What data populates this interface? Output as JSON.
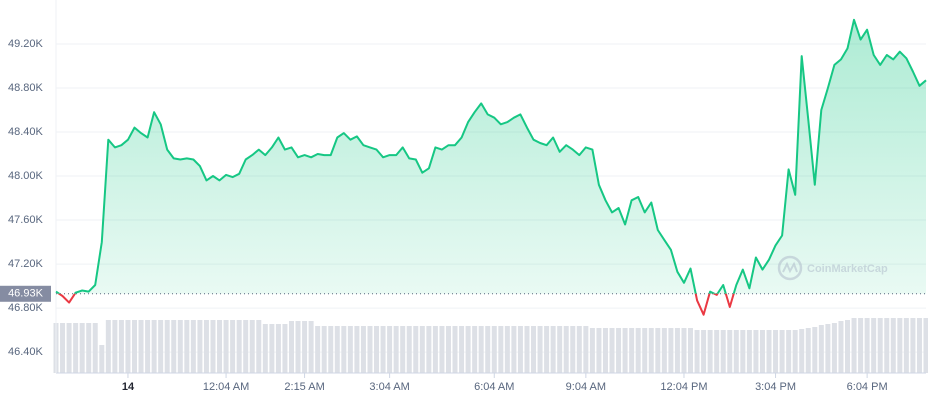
{
  "chart_data": {
    "type": "area",
    "values": [
      46950,
      46910,
      46850,
      46940,
      46960,
      46950,
      47010,
      47400,
      48330,
      48260,
      48280,
      48330,
      48440,
      48390,
      48350,
      48580,
      48470,
      48240,
      48160,
      48150,
      48160,
      48150,
      48090,
      47960,
      48000,
      47960,
      48010,
      47990,
      48020,
      48150,
      48190,
      48240,
      48190,
      48260,
      48350,
      48240,
      48260,
      48170,
      48190,
      48170,
      48200,
      48190,
      48190,
      48350,
      48390,
      48330,
      48360,
      48280,
      48260,
      48240,
      48170,
      48190,
      48190,
      48260,
      48160,
      48150,
      48030,
      48070,
      48260,
      48240,
      48280,
      48280,
      48350,
      48490,
      48580,
      48660,
      48560,
      48530,
      48470,
      48490,
      48530,
      48560,
      48440,
      48330,
      48300,
      48280,
      48350,
      48220,
      48280,
      48240,
      48190,
      48260,
      48240,
      47920,
      47780,
      47670,
      47710,
      47560,
      47780,
      47810,
      47670,
      47760,
      47510,
      47420,
      47330,
      47130,
      47030,
      47160,
      46870,
      46740,
      46950,
      46920,
      47010,
      46810,
      47010,
      47150,
      46980,
      47260,
      47150,
      47240,
      47370,
      47460,
      48060,
      47830,
      49090,
      48510,
      47920,
      48600,
      48800,
      49010,
      49060,
      49160,
      49420,
      49240,
      49330,
      49100,
      49010,
      49100,
      49060,
      49130,
      49070,
      48950,
      48820,
      48870
    ],
    "color": "#16c784",
    "color_below": "#ea3943",
    "reference": {
      "value": 46930,
      "label": "46.93K"
    },
    "volume": [
      50,
      50,
      50,
      50,
      50,
      50,
      50,
      28,
      53,
      53,
      53,
      53,
      53,
      53,
      53,
      53,
      53,
      53,
      53,
      53,
      53,
      53,
      53,
      53,
      53,
      53,
      53,
      53,
      53,
      53,
      53,
      53,
      49,
      49,
      49,
      49,
      52,
      52,
      52,
      52,
      47,
      47,
      47,
      47,
      47,
      47,
      47,
      47,
      47,
      47,
      47,
      47,
      47,
      47,
      47,
      47,
      47,
      47,
      47,
      47,
      47,
      47,
      47,
      47,
      47,
      47,
      47,
      47,
      47,
      47,
      47,
      47,
      47,
      47,
      47,
      47,
      47,
      47,
      47,
      47,
      47,
      47,
      45,
      45,
      45,
      45,
      45,
      45,
      45,
      45,
      45,
      45,
      45,
      45,
      45,
      45,
      45,
      45,
      43,
      43,
      43,
      43,
      43,
      43,
      43,
      43,
      43,
      43,
      43,
      43,
      43,
      43,
      43,
      43,
      44,
      45,
      46,
      48,
      49,
      50,
      52,
      53,
      55,
      55,
      55,
      55,
      55,
      55,
      55,
      55,
      55,
      55,
      55,
      55
    ],
    "volume_ylim": [
      0,
      55
    ],
    "volume_color": "#dde0e6",
    "ylim": [
      46210,
      49600
    ],
    "yticks": [
      {
        "value": 49200,
        "label": "49.20K"
      },
      {
        "value": 48800,
        "label": "48.80K"
      },
      {
        "value": 48400,
        "label": "48.40K"
      },
      {
        "value": 48000,
        "label": "48.00K"
      },
      {
        "value": 47600,
        "label": "47.60K"
      },
      {
        "value": 47200,
        "label": "47.20K"
      },
      {
        "value": 46800,
        "label": "46.80K"
      },
      {
        "value": 46400,
        "label": "46.40K"
      }
    ],
    "xlim": [
      0,
      133
    ],
    "xticks": [
      {
        "value": 11,
        "label": "14"
      },
      {
        "value": 26,
        "label": "12:04 AM"
      },
      {
        "value": 38,
        "label": "2:15 AM"
      },
      {
        "value": 51,
        "label": "3:04 AM"
      },
      {
        "value": 67,
        "label": "6:04 AM"
      },
      {
        "value": 81,
        "label": "9:04 AM"
      },
      {
        "value": 96,
        "label": "12:04 PM"
      },
      {
        "value": 110,
        "label": "3:04 PM"
      },
      {
        "value": 124,
        "label": "6:04 PM"
      }
    ],
    "grid": true,
    "watermark": "CoinMarketCap"
  }
}
